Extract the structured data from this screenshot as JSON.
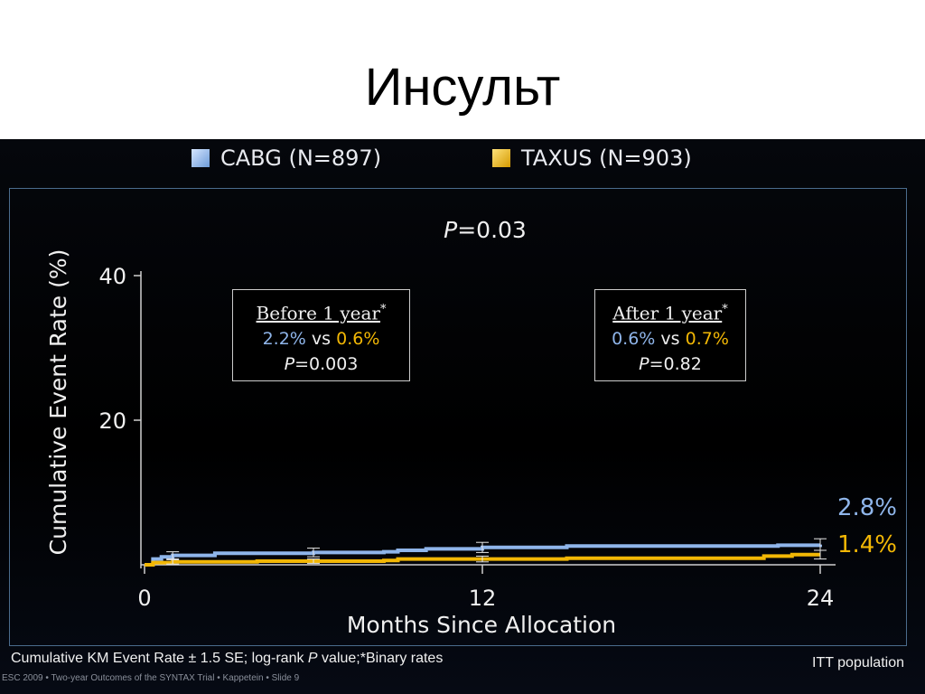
{
  "slide": {
    "title": "Инсульт",
    "footnote_a": "Cumulative KM Event Rate ± 1.5 SE; log-rank ",
    "footnote_p": "P",
    "footnote_b": " value;*Binary rates",
    "population": "ITT population",
    "credit": "ESC 2009 • Two-year Outcomes of the SYNTAX Trial • Kappetein • Slide 9"
  },
  "legend": [
    {
      "label": "CABG",
      "n": "(N=897)",
      "color": "#8fb5ea"
    },
    {
      "label": "TAXUS",
      "n": "(N=903)",
      "color": "#f2b705"
    }
  ],
  "pvalue": {
    "p": "P",
    "text": "=0.03"
  },
  "boxes": [
    {
      "heading": "Before 1 year",
      "star": "*",
      "cabg": "2.2%",
      "vs": "vs",
      "taxus": "0.6%",
      "p": "P",
      "ptext": "=0.003"
    },
    {
      "heading": "After 1 year",
      "star": "*",
      "cabg": "0.6%",
      "vs": "vs",
      "taxus": "0.7%",
      "p": "P",
      "ptext": "=0.82"
    }
  ],
  "chart_data": {
    "type": "line",
    "xlabel": "Months Since Allocation",
    "ylabel": "Cumulative Event Rate (%)",
    "xlim": [
      0,
      24
    ],
    "ylim": [
      0,
      40
    ],
    "xticks": [
      0,
      12,
      24
    ],
    "yticks": [
      20,
      40
    ],
    "grid": false,
    "series": [
      {
        "name": "CABG",
        "color": "#8fb5ea",
        "end_label": "2.8%",
        "points": [
          [
            0,
            0
          ],
          [
            0.3,
            0.8
          ],
          [
            0.6,
            1.1
          ],
          [
            1,
            1.3
          ],
          [
            2.5,
            1.6
          ],
          [
            6,
            1.7
          ],
          [
            8.5,
            1.8
          ],
          [
            9,
            2.0
          ],
          [
            10,
            2.2
          ],
          [
            12,
            2.4
          ],
          [
            15,
            2.6
          ],
          [
            20,
            2.6
          ],
          [
            22.5,
            2.7
          ],
          [
            24,
            2.8
          ]
        ],
        "error_bars": [
          [
            1,
            1.3,
            0.5
          ],
          [
            6,
            1.7,
            0.6
          ],
          [
            12,
            2.4,
            0.7
          ],
          [
            24,
            2.8,
            0.8
          ]
        ]
      },
      {
        "name": "TAXUS",
        "color": "#f2b705",
        "end_label": "1.4%",
        "points": [
          [
            0,
            0
          ],
          [
            0.3,
            0.3
          ],
          [
            1,
            0.4
          ],
          [
            2.5,
            0.4
          ],
          [
            4,
            0.5
          ],
          [
            8.5,
            0.6
          ],
          [
            9,
            0.8
          ],
          [
            12,
            0.8
          ],
          [
            15,
            0.9
          ],
          [
            21.5,
            0.9
          ],
          [
            22,
            1.2
          ],
          [
            23,
            1.4
          ],
          [
            24,
            1.4
          ]
        ],
        "error_bars": [
          [
            1,
            0.4,
            0.3
          ],
          [
            6,
            0.5,
            0.3
          ],
          [
            12,
            0.8,
            0.4
          ],
          [
            24,
            1.4,
            0.6
          ]
        ]
      }
    ]
  }
}
